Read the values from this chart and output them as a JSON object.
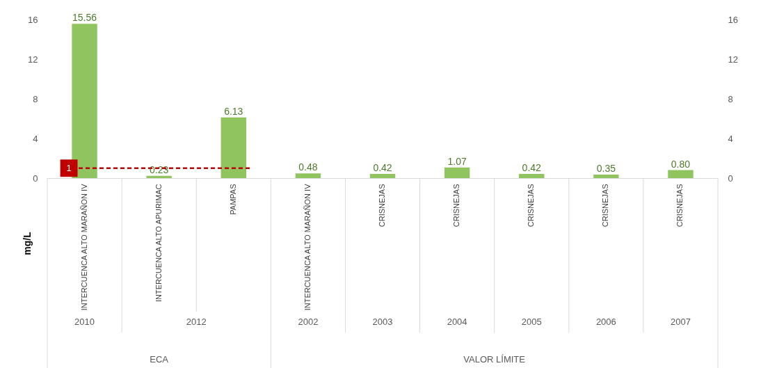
{
  "chart_data": {
    "type": "bar",
    "ylabel": "mg/L",
    "categories": [
      "INTERCUENCA ALTO MARAÑON IV",
      "INTERCUENCA ALTO APURIMAC",
      "PAMPAS",
      "INTERCUENCA ALTO MARAÑON IV",
      "CRISNEJAS",
      "CRISNEJAS",
      "CRISNEJAS",
      "CRISNEJAS",
      "CRISNEJAS"
    ],
    "values": [
      15.56,
      0.23,
      6.13,
      0.48,
      0.42,
      1.07,
      0.42,
      0.35,
      0.8
    ],
    "value_labels": [
      "15.56",
      "0.23",
      "6.13",
      "0.48",
      "0.42",
      "1.07",
      "0.42",
      "0.35",
      "0.80"
    ],
    "color": "#8fc45e",
    "ylim": [
      0,
      16
    ],
    "yticks": [
      0,
      4,
      8,
      12,
      16
    ],
    "y2lim": [
      0,
      16
    ],
    "y2ticks": [
      0,
      4,
      8,
      12,
      16
    ],
    "ref_lines": [
      {
        "axis": "y",
        "value": 1,
        "label": "1",
        "color": "#c00000",
        "line_style": "dashed"
      }
    ],
    "annotations": [
      "2010",
      "2012",
      "2002",
      "2003",
      "2004",
      "2005",
      "2006",
      "2007",
      "ECA",
      "VALOR LÍMITE"
    ]
  }
}
